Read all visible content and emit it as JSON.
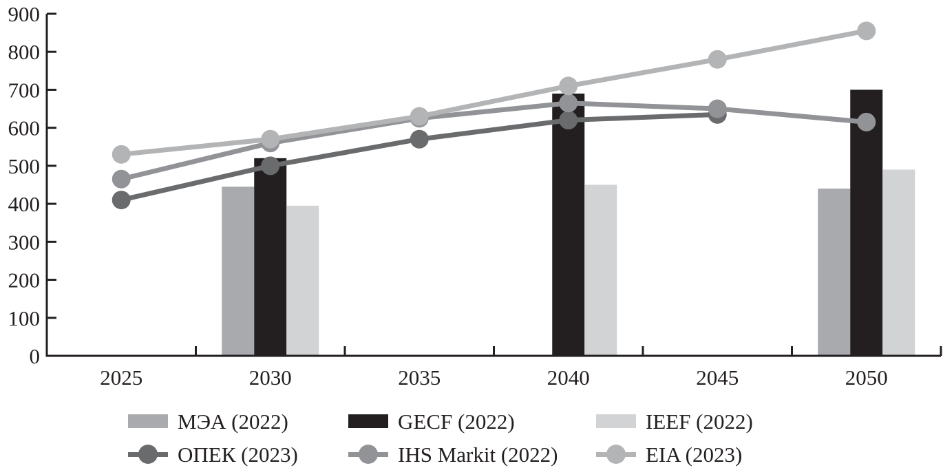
{
  "chart_data": {
    "type": "combo-bar-line",
    "title": "",
    "xlabel": "",
    "ylabel": "",
    "categories": [
      "2025",
      "2030",
      "2035",
      "2040",
      "2045",
      "2050"
    ],
    "bar_series": [
      {
        "name": "МЭА (2022)",
        "color": "#a8aaad",
        "values": [
          null,
          445,
          null,
          null,
          null,
          440
        ]
      },
      {
        "name": "GECF (2022)",
        "color": "#231f20",
        "values": [
          null,
          520,
          null,
          690,
          null,
          700
        ]
      },
      {
        "name": "IEEF (2022)",
        "color": "#d2d3d5",
        "values": [
          null,
          395,
          null,
          450,
          null,
          490
        ]
      }
    ],
    "line_series": [
      {
        "name": "ОПЕК (2023)",
        "color": "#6a6b6d",
        "values": [
          410,
          500,
          570,
          620,
          635,
          null
        ]
      },
      {
        "name": "IHS Markit (2022)",
        "color": "#919396",
        "values": [
          465,
          560,
          625,
          665,
          650,
          615
        ]
      },
      {
        "name": "EIA (2023)",
        "color": "#b2b4b6",
        "values": [
          530,
          570,
          630,
          710,
          780,
          855
        ]
      }
    ],
    "ylim": [
      0,
      900
    ],
    "ytick_step": 100,
    "ytick_labels": [
      "0",
      "100",
      "200",
      "300",
      "400",
      "500",
      "600",
      "700",
      "800",
      "900"
    ],
    "grid": false,
    "legend_position": "bottom",
    "axis_color": "#231f20"
  }
}
